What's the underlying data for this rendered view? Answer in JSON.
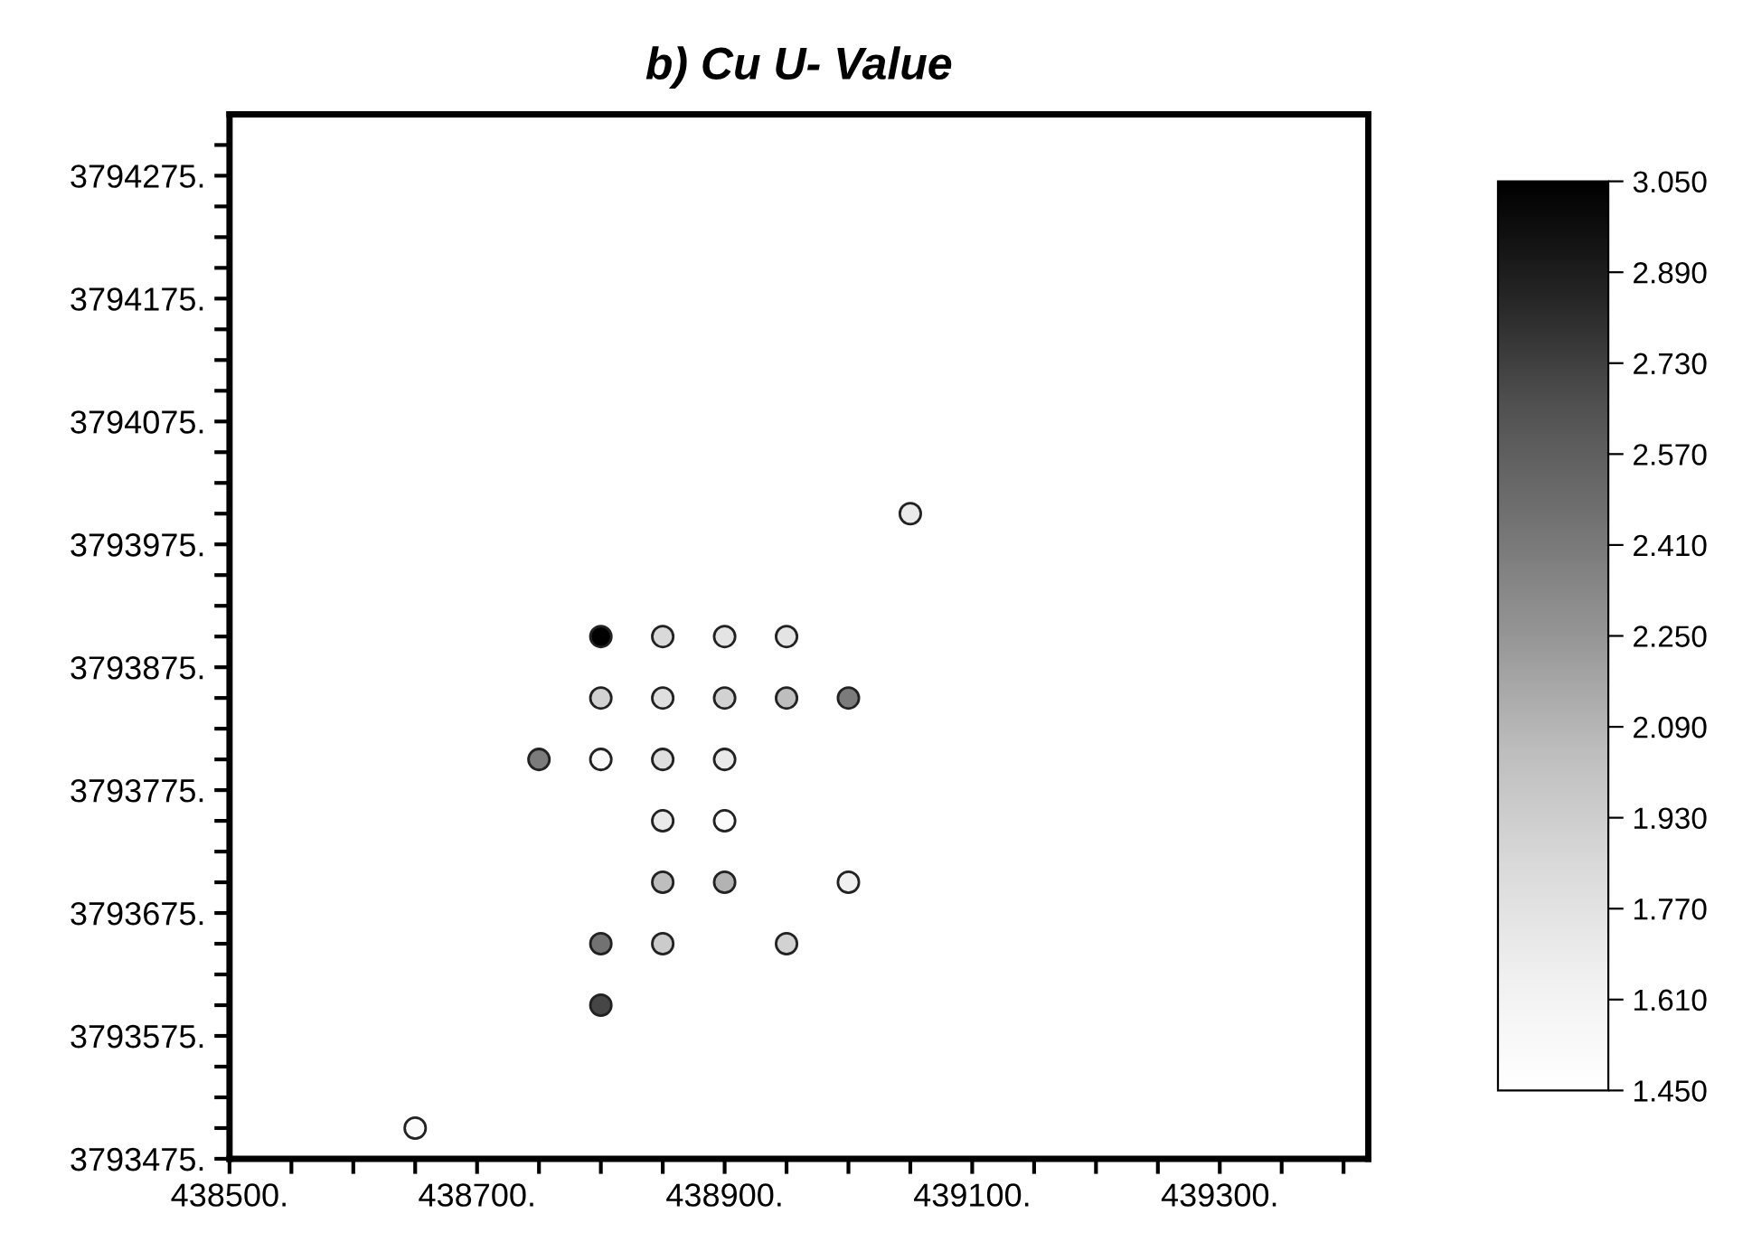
{
  "chart_data": {
    "type": "scatter",
    "title": "b) Cu U- Value",
    "marker": "circle",
    "grid": false,
    "legend": false,
    "x": [
      438800,
      438850,
      438900,
      438950,
      438800,
      438850,
      438900,
      438950,
      439000,
      438750,
      438800,
      438850,
      438900,
      438850,
      438900,
      438850,
      438900,
      439000,
      438800,
      438850,
      438950,
      438800,
      439050,
      438650
    ],
    "values": [
      3793900,
      3793900,
      3793900,
      3793900,
      3793850,
      3793850,
      3793850,
      3793850,
      3793850,
      3793800,
      3793800,
      3793800,
      3793800,
      3793750,
      3793750,
      3793700,
      3793700,
      3793700,
      3793650,
      3793650,
      3793650,
      3793600,
      3794000,
      3793500
    ],
    "cvalues": [
      3.05,
      1.85,
      1.75,
      1.75,
      1.9,
      1.8,
      1.9,
      2.05,
      2.4,
      2.4,
      1.5,
      1.8,
      1.7,
      1.7,
      1.5,
      2.05,
      2.1,
      1.65,
      2.45,
      1.95,
      1.9,
      2.7,
      1.7,
      1.5
    ],
    "xlim": [
      438500,
      439420
    ],
    "ylim": [
      3793475,
      3794325
    ],
    "xticks": [
      {
        "value": 438500,
        "label": "438500."
      },
      {
        "value": 438550,
        "label": null
      },
      {
        "value": 438600,
        "label": null
      },
      {
        "value": 438650,
        "label": null
      },
      {
        "value": 438700,
        "label": "438700."
      },
      {
        "value": 438750,
        "label": null
      },
      {
        "value": 438800,
        "label": null
      },
      {
        "value": 438850,
        "label": null
      },
      {
        "value": 438900,
        "label": "438900."
      },
      {
        "value": 438950,
        "label": null
      },
      {
        "value": 439000,
        "label": null
      },
      {
        "value": 439050,
        "label": null
      },
      {
        "value": 439100,
        "label": "439100."
      },
      {
        "value": 439150,
        "label": null
      },
      {
        "value": 439200,
        "label": null
      },
      {
        "value": 439250,
        "label": null
      },
      {
        "value": 439300,
        "label": "439300."
      },
      {
        "value": 439350,
        "label": null
      },
      {
        "value": 439400,
        "label": null
      }
    ],
    "yticks": [
      {
        "value": 3793475,
        "label": "3793475."
      },
      {
        "value": 3793500,
        "label": null
      },
      {
        "value": 3793525,
        "label": null
      },
      {
        "value": 3793550,
        "label": null
      },
      {
        "value": 3793575,
        "label": "3793575."
      },
      {
        "value": 3793600,
        "label": null
      },
      {
        "value": 3793625,
        "label": null
      },
      {
        "value": 3793650,
        "label": null
      },
      {
        "value": 3793675,
        "label": "3793675."
      },
      {
        "value": 3793700,
        "label": null
      },
      {
        "value": 3793725,
        "label": null
      },
      {
        "value": 3793750,
        "label": null
      },
      {
        "value": 3793775,
        "label": "3793775."
      },
      {
        "value": 3793800,
        "label": null
      },
      {
        "value": 3793825,
        "label": null
      },
      {
        "value": 3793850,
        "label": null
      },
      {
        "value": 3793875,
        "label": "3793875."
      },
      {
        "value": 3793900,
        "label": null
      },
      {
        "value": 3793925,
        "label": null
      },
      {
        "value": 3793950,
        "label": null
      },
      {
        "value": 3793975,
        "label": "3793975."
      },
      {
        "value": 3794000,
        "label": null
      },
      {
        "value": 3794025,
        "label": null
      },
      {
        "value": 3794050,
        "label": null
      },
      {
        "value": 3794075,
        "label": "3794075."
      },
      {
        "value": 3794100,
        "label": null
      },
      {
        "value": 3794125,
        "label": null
      },
      {
        "value": 3794150,
        "label": null
      },
      {
        "value": 3794175,
        "label": "3794175."
      },
      {
        "value": 3794200,
        "label": null
      },
      {
        "value": 3794225,
        "label": null
      },
      {
        "value": 3794250,
        "label": null
      },
      {
        "value": 3794275,
        "label": "3794275."
      },
      {
        "value": 3794300,
        "label": null
      }
    ],
    "clim": [
      1.45,
      3.05
    ],
    "cticks": [
      {
        "value": 1.45,
        "label": "1.450"
      },
      {
        "value": 1.61,
        "label": "1.610"
      },
      {
        "value": 1.77,
        "label": "1.770"
      },
      {
        "value": 1.93,
        "label": "1.930"
      },
      {
        "value": 2.09,
        "label": "2.090"
      },
      {
        "value": 2.25,
        "label": "2.250"
      },
      {
        "value": 2.41,
        "label": "2.410"
      },
      {
        "value": 2.57,
        "label": "2.570"
      },
      {
        "value": 2.73,
        "label": "2.730"
      },
      {
        "value": 2.89,
        "label": "2.890"
      },
      {
        "value": 3.05,
        "label": "3.050"
      }
    ]
  }
}
